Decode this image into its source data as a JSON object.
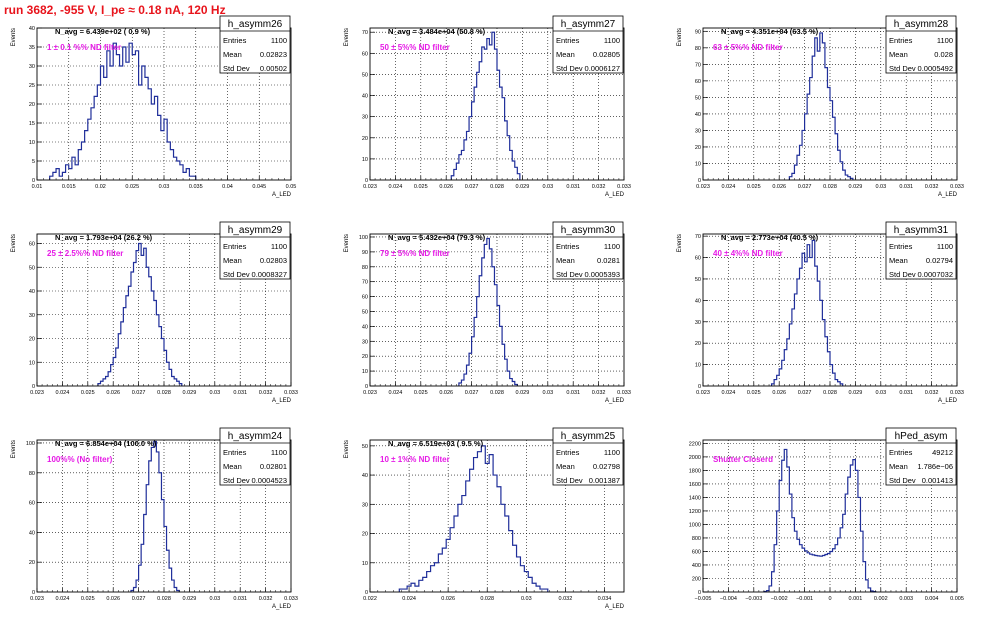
{
  "title": "run 3682,  -955 V, I_pe ≈ 0.18 nA, 120 Hz",
  "colors": {
    "histogram": "#1f2e9a",
    "annotation": "#e619e6",
    "title": "#e8141c",
    "grid": "#000000"
  },
  "stat_labels": {
    "entries": "Entries",
    "mean": "Mean",
    "std": "Std Dev"
  },
  "chart_data": [
    {
      "type": "histogram",
      "name": "h_asymm26",
      "navg": "N_avg = 6.439e+02 ( 0.9 %)",
      "annotation": "1 ± 0.1 %% ND filter",
      "stats": {
        "entries": "1100",
        "mean": "0.02823",
        "std": "0.00502"
      },
      "xlabel": "A_LED",
      "ylabel": "Events",
      "xlim": [
        0.01,
        0.05
      ],
      "ylim": [
        0,
        40
      ],
      "xticks": [
        0.01,
        0.015,
        0.02,
        0.025,
        0.03,
        0.035,
        0.04,
        0.045,
        0.05
      ],
      "xticklabels": [
        "0.01",
        "0.015",
        "0.02",
        "0.025",
        "0.03",
        "0.035",
        "0.04",
        "0.045",
        "0.05"
      ],
      "yticks": [
        0,
        5,
        10,
        15,
        20,
        25,
        30,
        35,
        40
      ],
      "bins": {
        "start": 0.012,
        "width": 0.0005,
        "counts": [
          1,
          2,
          3,
          1,
          2,
          4,
          3,
          6,
          4,
          8,
          10,
          13,
          16,
          19,
          22,
          25,
          30,
          27,
          34,
          30,
          36,
          33,
          30,
          35,
          31,
          36,
          33,
          34,
          25,
          30,
          27,
          24,
          20,
          22,
          17,
          13,
          16,
          10,
          8,
          6,
          5,
          4,
          2,
          3,
          1,
          1
        ]
      }
    },
    {
      "type": "histogram",
      "name": "h_asymm27",
      "navg": "N_avg = 3.484e+04 (50.8 %)",
      "annotation": "50 ± 5%% ND filter",
      "stats": {
        "entries": "1100",
        "mean": "0.02805",
        "std": "0.0006127"
      },
      "xlabel": "A_LED",
      "ylabel": "Events",
      "xlim": [
        0.023,
        0.033
      ],
      "ylim": [
        0,
        72
      ],
      "xticks": [
        0.023,
        0.024,
        0.025,
        0.026,
        0.027,
        0.028,
        0.029,
        0.03,
        0.031,
        0.032,
        0.033
      ],
      "xticklabels": [
        "0.023",
        "0.024",
        "0.025",
        "0.026",
        "0.027",
        "0.028",
        "0.029",
        "0.03",
        "0.031",
        "0.032",
        "0.033"
      ],
      "yticks": [
        0,
        10,
        20,
        30,
        40,
        50,
        60,
        70
      ],
      "bins": {
        "start": 0.0262,
        "width": 0.0001,
        "counts": [
          2,
          5,
          8,
          12,
          14,
          19,
          23,
          30,
          37,
          44,
          51,
          56,
          63,
          62,
          67,
          64,
          70,
          62,
          52,
          44,
          39,
          28,
          21,
          14,
          9,
          6,
          3
        ]
      }
    },
    {
      "type": "histogram",
      "name": "h_asymm28",
      "navg": "N_avg = 4.351e+04 (63.5 %)",
      "annotation": "63 ± 5%% ND filter",
      "stats": {
        "entries": "1100",
        "mean": "0.028",
        "std": "0.0005492"
      },
      "xlabel": "A_LED",
      "ylabel": "Events",
      "xlim": [
        0.023,
        0.033
      ],
      "ylim": [
        0,
        92
      ],
      "xticks": [
        0.023,
        0.024,
        0.025,
        0.026,
        0.027,
        0.028,
        0.029,
        0.03,
        0.031,
        0.032,
        0.033
      ],
      "xticklabels": [
        "0.023",
        "0.024",
        "0.025",
        "0.026",
        "0.027",
        "0.028",
        "0.029",
        "0.03",
        "0.031",
        "0.032",
        "0.033"
      ],
      "yticks": [
        0,
        10,
        20,
        30,
        40,
        50,
        60,
        70,
        80,
        90
      ],
      "bins": {
        "start": 0.0264,
        "width": 0.0001,
        "counts": [
          2,
          4,
          9,
          15,
          21,
          30,
          40,
          52,
          62,
          75,
          86,
          78,
          89,
          83,
          68,
          56,
          48,
          38,
          28,
          18,
          11,
          6,
          3,
          2,
          1
        ]
      }
    },
    {
      "type": "histogram",
      "name": "h_asymm29",
      "navg": "N_avg = 1.793e+04 (26.2 %)",
      "annotation": "25 ± 2.5%% ND filter",
      "stats": {
        "entries": "1100",
        "mean": "0.02803",
        "std": "0.0008327"
      },
      "xlabel": "A_LED",
      "ylabel": "Events",
      "xlim": [
        0.023,
        0.033
      ],
      "ylim": [
        0,
        64
      ],
      "xticks": [
        0.023,
        0.024,
        0.025,
        0.026,
        0.027,
        0.028,
        0.029,
        0.03,
        0.031,
        0.032,
        0.033
      ],
      "xticklabels": [
        "0.023",
        "0.024",
        "0.025",
        "0.026",
        "0.027",
        "0.028",
        "0.029",
        "0.03",
        "0.031",
        "0.032",
        "0.033"
      ],
      "yticks": [
        0,
        10,
        20,
        30,
        40,
        50,
        60
      ],
      "bins": {
        "start": 0.0254,
        "width": 0.0001,
        "counts": [
          1,
          2,
          3,
          4,
          6,
          9,
          12,
          16,
          22,
          27,
          33,
          38,
          42,
          48,
          52,
          57,
          60,
          55,
          58,
          50,
          46,
          40,
          36,
          30,
          25,
          20,
          15,
          10,
          7,
          4,
          3,
          2,
          1
        ]
      }
    },
    {
      "type": "histogram",
      "name": "h_asymm30",
      "navg": "N_avg = 5.432e+04 (79.3 %)",
      "annotation": "79 ± 5%% ND filter",
      "stats": {
        "entries": "1100",
        "mean": "0.0281",
        "std": "0.0005393"
      },
      "xlabel": "A_LED",
      "ylabel": "Events",
      "xlim": [
        0.023,
        0.033
      ],
      "ylim": [
        0,
        102
      ],
      "xticks": [
        0.023,
        0.024,
        0.025,
        0.026,
        0.027,
        0.028,
        0.029,
        0.03,
        0.031,
        0.032,
        0.033
      ],
      "xticklabels": [
        "0.023",
        "0.024",
        "0.025",
        "0.026",
        "0.027",
        "0.028",
        "0.029",
        "0.03",
        "0.031",
        "0.032",
        "0.033"
      ],
      "yticks": [
        0,
        10,
        20,
        30,
        40,
        50,
        60,
        70,
        80,
        90,
        100
      ],
      "bins": {
        "start": 0.0265,
        "width": 0.0001,
        "counts": [
          2,
          4,
          8,
          14,
          22,
          33,
          46,
          60,
          74,
          86,
          95,
          99,
          92,
          80,
          68,
          54,
          40,
          28,
          18,
          10,
          5,
          3,
          1
        ]
      }
    },
    {
      "type": "histogram",
      "name": "h_asymm31",
      "navg": "N_avg = 2.773e+04 (40.5 %)",
      "annotation": "40 ± 4%% ND filter",
      "stats": {
        "entries": "1100",
        "mean": "0.02794",
        "std": "0.0007032"
      },
      "xlabel": "A_LED",
      "ylabel": "Events",
      "xlim": [
        0.023,
        0.033
      ],
      "ylim": [
        0,
        71
      ],
      "xticks": [
        0.023,
        0.024,
        0.025,
        0.026,
        0.027,
        0.028,
        0.029,
        0.03,
        0.031,
        0.032,
        0.033
      ],
      "xticklabels": [
        "0.023",
        "0.024",
        "0.025",
        "0.026",
        "0.027",
        "0.028",
        "0.029",
        "0.03",
        "0.031",
        "0.032",
        "0.033"
      ],
      "yticks": [
        0,
        10,
        20,
        30,
        40,
        50,
        60,
        70
      ],
      "bins": {
        "start": 0.0257,
        "width": 0.0001,
        "counts": [
          1,
          3,
          5,
          8,
          12,
          17,
          22,
          29,
          36,
          43,
          50,
          55,
          62,
          58,
          66,
          60,
          68,
          56,
          49,
          40,
          31,
          23,
          16,
          10,
          6,
          3,
          2,
          1
        ]
      }
    },
    {
      "type": "histogram",
      "name": "h_asymm24",
      "navg": "N_avg = 6.854e+04 (100.0 %)",
      "annotation": "100%% (No filter)",
      "stats": {
        "entries": "1100",
        "mean": "0.02801",
        "std": "0.0004523"
      },
      "xlabel": "A_LED",
      "ylabel": "Events",
      "xlim": [
        0.023,
        0.033
      ],
      "ylim": [
        0,
        102
      ],
      "xticks": [
        0.023,
        0.024,
        0.025,
        0.026,
        0.027,
        0.028,
        0.029,
        0.03,
        0.031,
        0.032,
        0.033
      ],
      "xticklabels": [
        "0.023",
        "0.024",
        "0.025",
        "0.026",
        "0.027",
        "0.028",
        "0.029",
        "0.03",
        "0.031",
        "0.032",
        "0.033"
      ],
      "yticks": [
        0,
        20,
        40,
        60,
        80,
        100
      ],
      "bins": {
        "start": 0.0267,
        "width": 0.0001,
        "counts": [
          1,
          3,
          8,
          18,
          32,
          52,
          72,
          88,
          97,
          101,
          94,
          80,
          62,
          44,
          28,
          16,
          8,
          3,
          1
        ]
      }
    },
    {
      "type": "histogram",
      "name": "h_asymm25",
      "navg": "N_avg = 6.519e+03 ( 9.5 %)",
      "annotation": "10 ± 1%% ND filter",
      "stats": {
        "entries": "1100",
        "mean": "0.02798",
        "std": "0.001387"
      },
      "xlabel": "A_LED",
      "ylabel": "Events",
      "xlim": [
        0.022,
        0.035
      ],
      "ylim": [
        0,
        52
      ],
      "xticks": [
        0.022,
        0.024,
        0.026,
        0.028,
        0.03,
        0.032,
        0.034
      ],
      "xticklabels": [
        "0.022",
        "0.024",
        "0.026",
        "0.028",
        "0.03",
        "0.032",
        "0.034"
      ],
      "yticks": [
        0,
        10,
        20,
        30,
        40,
        50
      ],
      "bins": {
        "start": 0.0235,
        "width": 0.0002,
        "counts": [
          1,
          1,
          2,
          3,
          2,
          4,
          5,
          7,
          9,
          10,
          13,
          15,
          18,
          22,
          26,
          30,
          33,
          38,
          42,
          46,
          48,
          50,
          44,
          47,
          40,
          36,
          30,
          26,
          21,
          16,
          12,
          9,
          7,
          5,
          3,
          2,
          1,
          1
        ]
      }
    },
    {
      "type": "histogram",
      "name": "hPed_asym",
      "navg": "",
      "annotation": "Shutter Closerd",
      "stats": {
        "entries": "49212",
        "mean": "1.786e−06",
        "std": "0.001413"
      },
      "xlabel": "",
      "ylabel": "",
      "xlim": [
        -0.005,
        0.005
      ],
      "ylim": [
        0,
        2250
      ],
      "xticks": [
        -0.005,
        -0.004,
        -0.003,
        -0.002,
        -0.001,
        0,
        0.001,
        0.002,
        0.003,
        0.004,
        0.005
      ],
      "xticklabels": [
        "−0.005",
        "−0.004",
        "−0.003",
        "−0.002",
        "−0.001",
        "0",
        "0.001",
        "0.002",
        "0.003",
        "0.004",
        "0.005"
      ],
      "yticks": [
        0,
        200,
        400,
        600,
        800,
        1000,
        1200,
        1400,
        1600,
        1800,
        2000,
        2200
      ],
      "bins": {
        "start": -0.0026,
        "width": 0.0001,
        "counts": [
          5,
          20,
          90,
          300,
          700,
          1200,
          1650,
          1950,
          2110,
          1850,
          1450,
          1100,
          900,
          780,
          700,
          650,
          610,
          580,
          560,
          550,
          540,
          535,
          530,
          540,
          555,
          570,
          600,
          640,
          700,
          800,
          950,
          1150,
          1450,
          1700,
          1880,
          1960,
          1800,
          1400,
          900,
          450,
          180,
          60,
          15,
          5
        ]
      }
    }
  ]
}
